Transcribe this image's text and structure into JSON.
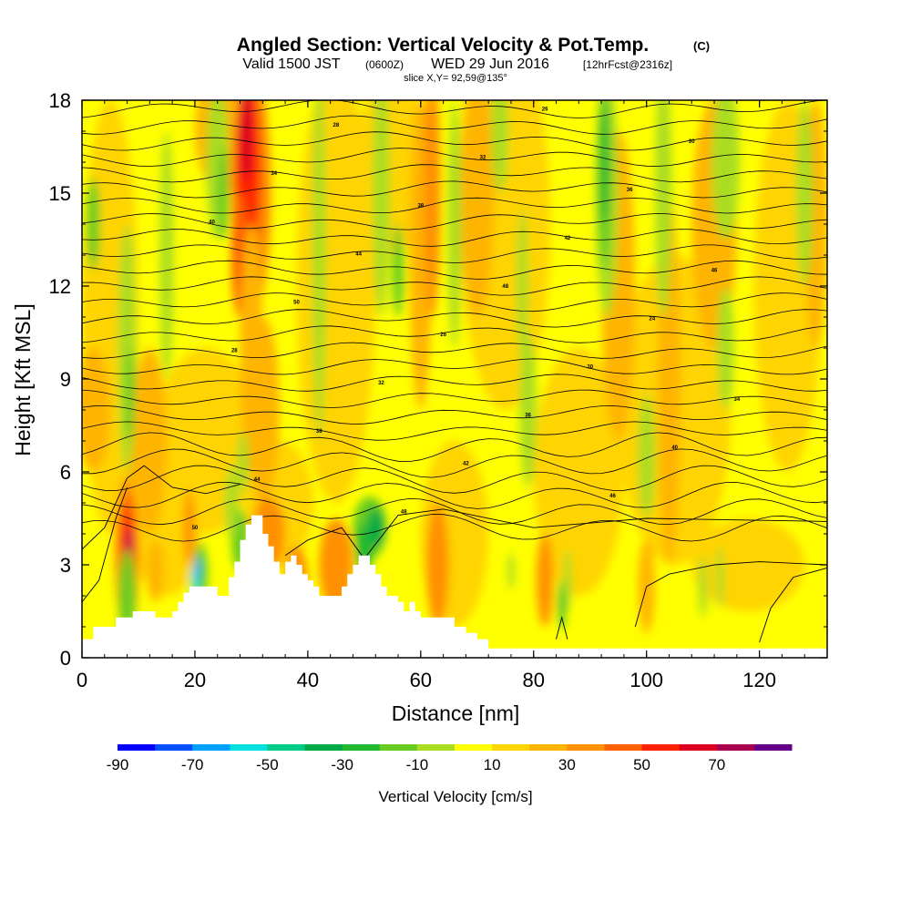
{
  "title": {
    "main": "Angled Section: Vertical Velocity & Pot.Temp.",
    "main_unit": "(C)",
    "valid_a": "Valid 1500 JST",
    "valid_b": "(0600Z)",
    "valid_c": "WED 29 Jun 2016",
    "valid_d": "[12hrFcst@2316z]",
    "slice": "slice X,Y= 92,59@135°"
  },
  "chart_data": {
    "type": "heatmap",
    "xlabel": "Distance [nm]",
    "ylabel": "Height [Kft MSL]",
    "xlim": [
      0,
      132
    ],
    "ylim": [
      0,
      18
    ],
    "xticks": [
      0,
      20,
      40,
      60,
      80,
      100,
      120
    ],
    "yticks": [
      0,
      3,
      6,
      9,
      12,
      15,
      18
    ],
    "colorbar": {
      "label": "Vertical Velocity [cm/s]",
      "tick_labels": [
        "-90",
        "-70",
        "-50",
        "-30",
        "-10",
        "10",
        "30",
        "50",
        "70"
      ],
      "colors": [
        "#0000ff",
        "#0050ff",
        "#00a0ff",
        "#00e0e0",
        "#00cc88",
        "#00aa44",
        "#22b830",
        "#66cc22",
        "#aadd22",
        "#ffff00",
        "#ffd400",
        "#ffb400",
        "#ff9000",
        "#ff6000",
        "#ff2000",
        "#dd0020",
        "#aa0050",
        "#660088"
      ]
    },
    "contours": {
      "variable": "Potential Temperature (C)",
      "labels_visible": [
        "50",
        "48",
        "46",
        "44",
        "42",
        "40",
        "38",
        "36",
        "34",
        "32",
        "30",
        "28",
        "26",
        "24"
      ]
    },
    "terrain_profile": [
      [
        0,
        0.6
      ],
      [
        1,
        0.6
      ],
      [
        2,
        1.0
      ],
      [
        5,
        1.0
      ],
      [
        6,
        1.3
      ],
      [
        8,
        1.3
      ],
      [
        9,
        1.5
      ],
      [
        12,
        1.5
      ],
      [
        13,
        1.3
      ],
      [
        15,
        1.3
      ],
      [
        16,
        1.5
      ],
      [
        17,
        1.8
      ],
      [
        18,
        2.1
      ],
      [
        19,
        2.3
      ],
      [
        23,
        2.3
      ],
      [
        24,
        2.0
      ],
      [
        25,
        2.0
      ],
      [
        26,
        2.6
      ],
      [
        27,
        3.1
      ],
      [
        28,
        3.8
      ],
      [
        29,
        4.3
      ],
      [
        30,
        4.6
      ],
      [
        31,
        4.6
      ],
      [
        32,
        4.0
      ],
      [
        33,
        3.6
      ],
      [
        34,
        3.1
      ],
      [
        35,
        2.7
      ],
      [
        36,
        3.1
      ],
      [
        37,
        3.3
      ],
      [
        38,
        3.0
      ],
      [
        39,
        2.7
      ],
      [
        40,
        2.5
      ],
      [
        41,
        2.3
      ],
      [
        42,
        2.0
      ],
      [
        45,
        2.0
      ],
      [
        46,
        2.3
      ],
      [
        47,
        2.7
      ],
      [
        48,
        3.0
      ],
      [
        49,
        3.3
      ],
      [
        50,
        3.3
      ],
      [
        51,
        3.0
      ],
      [
        52,
        2.7
      ],
      [
        53,
        2.3
      ],
      [
        54,
        2.0
      ],
      [
        56,
        1.8
      ],
      [
        57,
        1.5
      ],
      [
        58,
        1.8
      ],
      [
        59,
        1.5
      ],
      [
        60,
        1.3
      ],
      [
        64,
        1.3
      ],
      [
        66,
        1.0
      ],
      [
        68,
        0.8
      ],
      [
        70,
        0.6
      ],
      [
        72,
        0.3
      ],
      [
        132,
        0.3
      ]
    ]
  }
}
